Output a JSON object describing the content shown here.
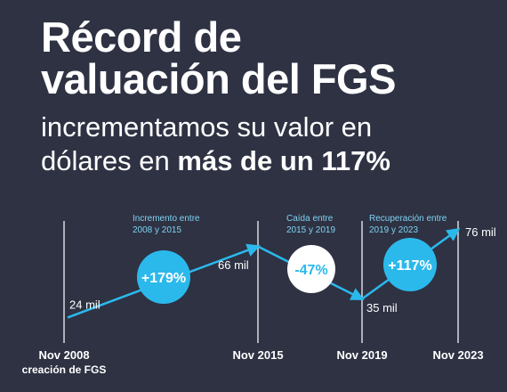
{
  "title_line1": "Récord de",
  "title_line2": "valuación del FGS",
  "subtitle_line1": "incrementamos su valor en",
  "subtitle_line2_prefix": "dólares en ",
  "subtitle_line2_bold": "más de un 117%",
  "colors": {
    "background": "#2e3243",
    "accent": "#2bb9ec",
    "text": "#ffffff",
    "muted_text": "#7fd3f3",
    "gridline": "#d7d9de"
  },
  "chart_data": {
    "type": "line",
    "title": "",
    "xlabel": "",
    "ylabel": "",
    "x": [
      "Nov 2008",
      "Nov 2015",
      "Nov 2019",
      "Nov 2023"
    ],
    "x_sublabels": [
      "creación de FGS",
      "",
      "",
      ""
    ],
    "values": [
      24,
      66,
      35,
      76
    ],
    "value_labels": [
      "24 mil",
      "66 mil",
      "35 mil",
      "76 mil"
    ],
    "unit": "mil",
    "segments": [
      {
        "caption_line1": "Incremento entre",
        "caption_line2": "2008 y 2015",
        "change": "+179%",
        "style": "filled"
      },
      {
        "caption_line1": "Caída entre",
        "caption_line2": "2015  y 2019",
        "change": "-47%",
        "style": "outline"
      },
      {
        "caption_line1": "Recuperación entre",
        "caption_line2": "2019 y 2023",
        "change": "+117%",
        "style": "filled"
      }
    ],
    "grid": "vertical",
    "legend": "none"
  }
}
